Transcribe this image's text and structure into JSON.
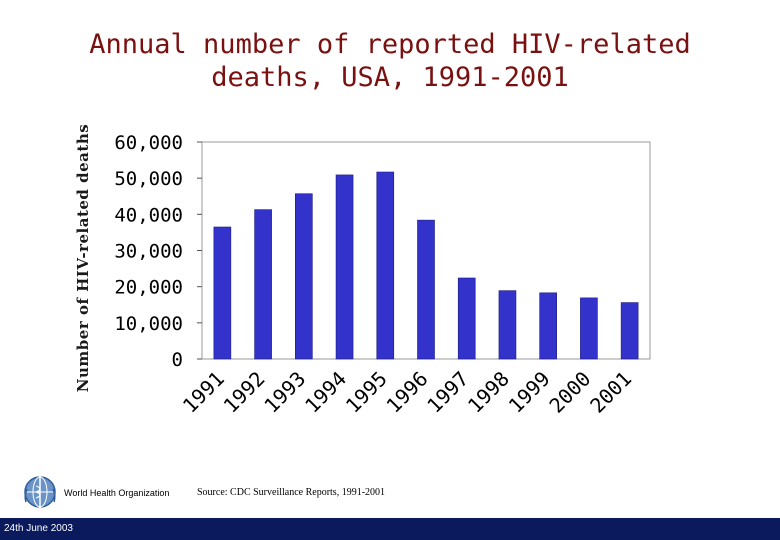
{
  "slide": {
    "title_line1": "Annual number of reported HIV-related",
    "title_line2": "deaths, USA, 1991-2001",
    "organization": "World Health Organization",
    "source": "Source: CDC Surveillance Reports, 1991-2001",
    "date": "24th June 2003"
  },
  "colors": {
    "title": "#7a1010",
    "bar": "#3333cc",
    "footer": "#0a1a5c"
  },
  "chart_data": {
    "type": "bar",
    "ylabel": "Number of HIV-related deaths",
    "categories": [
      "1991",
      "1992",
      "1993",
      "1994",
      "1995",
      "1996",
      "1997",
      "1998",
      "1999",
      "2000",
      "2001"
    ],
    "values": [
      36500,
      41300,
      45700,
      50900,
      51700,
      38400,
      22400,
      18900,
      18300,
      16900,
      15600
    ],
    "yticks": [
      "0",
      "10,000",
      "20,000",
      "30,000",
      "40,000",
      "50,000",
      "60,000"
    ],
    "ylim": [
      0,
      60000
    ],
    "grid": false,
    "legend": "none"
  }
}
